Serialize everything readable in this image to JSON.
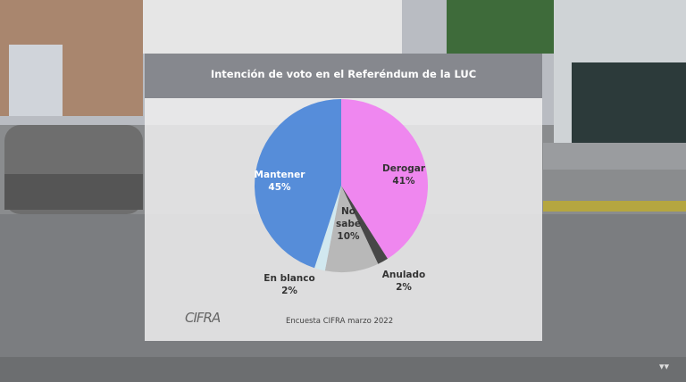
{
  "chart_data": {
    "type": "pie",
    "title": "Intención de voto en el Referéndum de la LUC",
    "start": "top",
    "direction": "clockwise",
    "slices": [
      {
        "label": "Derogar",
        "value": 41,
        "display": "41%",
        "color": "#f07ff0"
      },
      {
        "label": "Anulado",
        "value": 2,
        "display": "2%",
        "color": "#3a3a3a"
      },
      {
        "label": "No sabe",
        "value": 10,
        "display": "10%",
        "color": "#b4b4b4"
      },
      {
        "label": "En blanco",
        "value": 2,
        "display": "2%",
        "color": "#cfe8f0"
      },
      {
        "label": "Mantener",
        "value": 45,
        "display": "45%",
        "color": "#4a86d8"
      }
    ],
    "source": "Encuesta CIFRA marzo 2022"
  },
  "logo": "CIFRA"
}
